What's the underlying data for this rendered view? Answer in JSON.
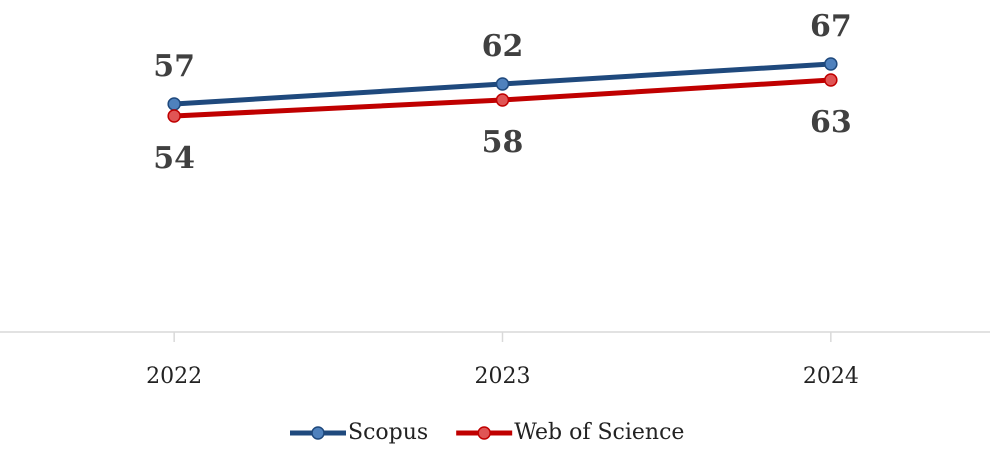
{
  "chart_data": {
    "type": "line",
    "categories": [
      "2022",
      "2023",
      "2024"
    ],
    "series": [
      {
        "name": "Scopus",
        "color": "#1f497d",
        "marker_color": "#4f81bd",
        "values": [
          57,
          62,
          67
        ]
      },
      {
        "name": "Web of Science",
        "color": "#c00000",
        "marker_color": "#e05555",
        "values": [
          54,
          58,
          63
        ]
      }
    ],
    "ylim": [
      0,
      80
    ],
    "grid": false
  }
}
